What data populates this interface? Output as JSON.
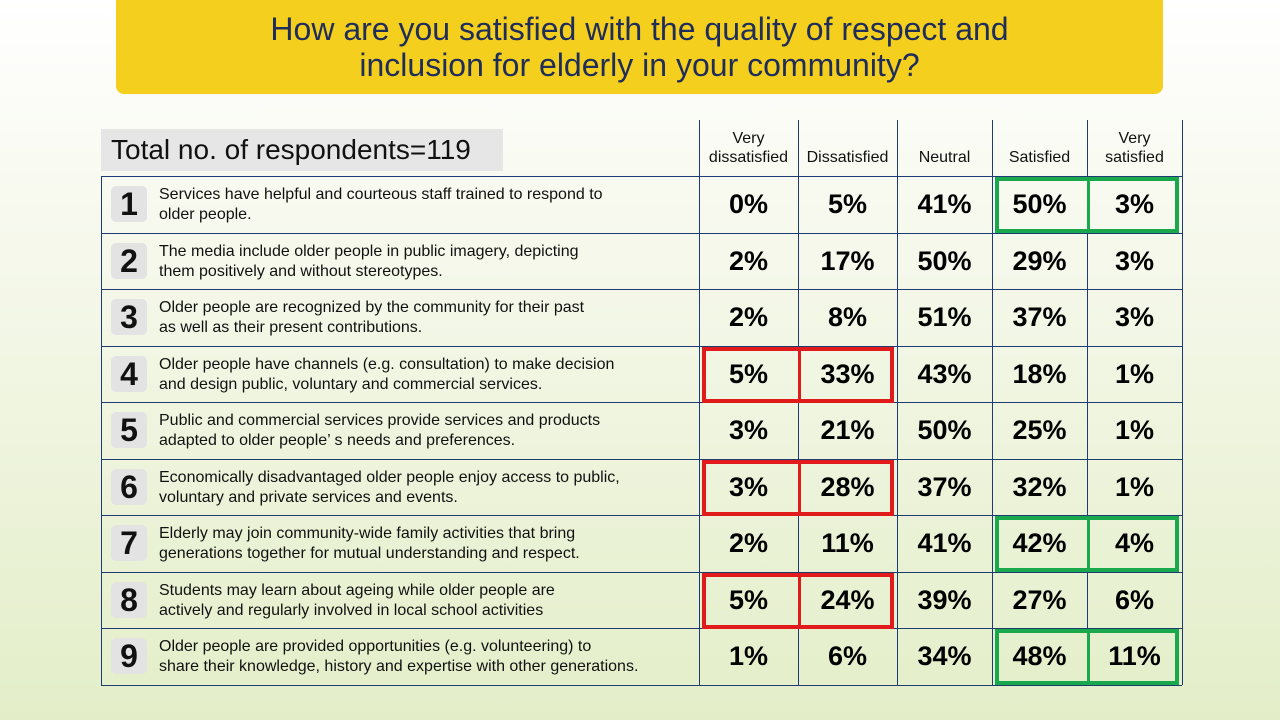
{
  "title_line1": "How are you satisfied with the quality of respect and",
  "title_line2": "inclusion for elderly in your community?",
  "respondents_label": "Total no. of respondents=119",
  "colors": {
    "banner": "#f5cf1d",
    "title_text": "#1f2d5a",
    "highlight_red": "#e11b1b",
    "highlight_green": "#1aa84d"
  },
  "chart_data": {
    "type": "table",
    "title": "How are you satisfied with the quality of respect and inclusion for elderly in your community?",
    "total_respondents": 119,
    "columns": [
      {
        "line1": "Very",
        "line2": "dissatisfied"
      },
      {
        "line1": "",
        "line2": "Dissatisfied"
      },
      {
        "line1": "",
        "line2": "Neutral"
      },
      {
        "line1": "",
        "line2": "Satisfied"
      },
      {
        "line1": "Very",
        "line2": "satisfied"
      }
    ],
    "rows": [
      {
        "num": "1",
        "l1": "Services have helpful and courteous staff trained to respond to",
        "l2": "older people.",
        "values": [
          "0%",
          "5%",
          "41%",
          "50%",
          "3%"
        ],
        "highlight": "green"
      },
      {
        "num": "2",
        "l1": "The media include older people in public imagery, depicting",
        "l2": "them positively and without stereotypes.",
        "values": [
          "2%",
          "17%",
          "50%",
          "29%",
          "3%"
        ],
        "highlight": ""
      },
      {
        "num": "3",
        "l1": "Older people are recognized by the community for their past",
        "l2": "as well as their present contributions.",
        "values": [
          "2%",
          "8%",
          "51%",
          "37%",
          "3%"
        ],
        "highlight": ""
      },
      {
        "num": "4",
        "l1": "Older people have channels (e.g. consultation) to make decision",
        "l2": "and design public, voluntary and commercial services.",
        "values": [
          "5%",
          "33%",
          "43%",
          "18%",
          "1%"
        ],
        "highlight": "red"
      },
      {
        "num": "5",
        "l1": "Public and commercial services provide services and products",
        "l2": "adapted to older people’ s needs and preferences.",
        "values": [
          "3%",
          "21%",
          "50%",
          "25%",
          "1%"
        ],
        "highlight": ""
      },
      {
        "num": "6",
        "l1": "Economically disadvantaged older people enjoy access to public,",
        "l2": "voluntary and private services and events.",
        "values": [
          "3%",
          "28%",
          "37%",
          "32%",
          "1%"
        ],
        "highlight": "red"
      },
      {
        "num": "7",
        "l1": "Elderly may join community-wide family activities that bring",
        "l2": "generations together for mutual understanding and respect.",
        "values": [
          "2%",
          "11%",
          "41%",
          "42%",
          "4%"
        ],
        "highlight": "green"
      },
      {
        "num": "8",
        "l1": "Students may learn about ageing while older people are",
        "l2": "actively and regularly involved in local school activities",
        "values": [
          "5%",
          "24%",
          "39%",
          "27%",
          "6%"
        ],
        "highlight": "red"
      },
      {
        "num": "9",
        "l1": "Older people are provided opportunities (e.g. volunteering) to",
        "l2": "share their knowledge, history and expertise with other generations.",
        "values": [
          "1%",
          "6%",
          "34%",
          "48%",
          "11%"
        ],
        "highlight": "green"
      }
    ]
  }
}
